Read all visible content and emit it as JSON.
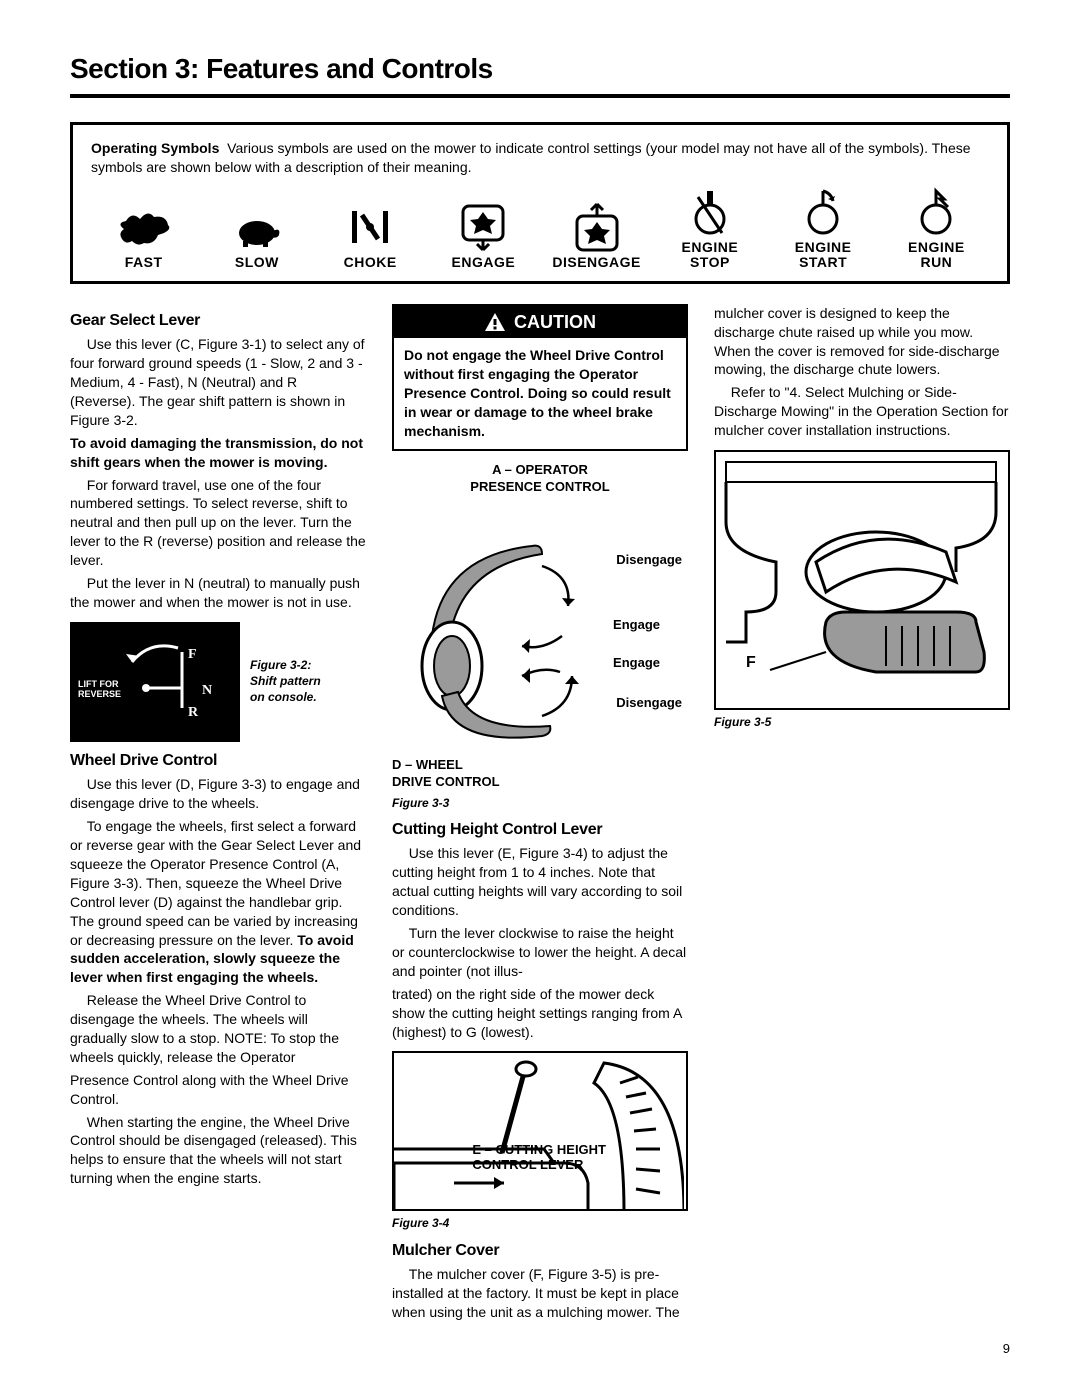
{
  "section_title": "Section 3: Features and Controls",
  "symbols_box": {
    "heading": "Operating Symbols",
    "intro": "Various symbols are used on the mower to indicate control settings (your model may not have all of the symbols). These symbols are shown below with a description of their meaning.",
    "items": [
      {
        "label": "FAST"
      },
      {
        "label": "SLOW"
      },
      {
        "label": "CHOKE"
      },
      {
        "label": "ENGAGE"
      },
      {
        "label": "DISENGAGE"
      },
      {
        "label": "ENGINE STOP"
      },
      {
        "label": "ENGINE START"
      },
      {
        "label": "ENGINE RUN"
      }
    ]
  },
  "gear_select": {
    "heading": "Gear Select Lever",
    "p1": "Use this lever (C, Figure 3-1) to select any of four forward ground speeds (1 - Slow, 2 and 3 - Medium, 4 - Fast), N (Neutral) and R (Reverse). The gear shift pattern is shown in Figure 3-2.",
    "p2_bold": "To avoid damaging the transmission, do not shift gears when the mower is moving.",
    "p3": "For forward travel, use one of the four numbered settings. To select reverse, shift to neutral and then pull up on the lever. Turn the lever to the R (reverse) position and release the lever.",
    "p4": "Put the lever in N (neutral) to manually push the mower and when the mower is not in use."
  },
  "fig32": {
    "lift": "LIFT FOR\nREVERSE",
    "f": "F",
    "n": "N",
    "r": "R",
    "caption": "Figure 3-2:\nShift pattern\non console."
  },
  "wheel_drive": {
    "heading": "Wheel Drive Control",
    "p1": "Use this lever (D, Figure 3-3) to engage and disengage drive to the wheels.",
    "p2": "To engage the wheels, first select a forward or reverse gear with the Gear Select Lever and squeeze the Operator Presence Control (A, Figure 3-3).  Then, squeeze the Wheel Drive Control lever (D) against the handlebar grip.  The ground speed can be varied by increasing or decreasing pressure on the lever.",
    "p2_bold": "To avoid sudden acceleration, slowly squeeze the lever when first engaging the wheels.",
    "p3": "Release the Wheel Drive Control to disengage the wheels. The wheels will gradually slow to a stop.  NOTE: To stop the wheels quickly, release the Operator",
    "p4_cont": "Presence Control along with the Wheel Drive Control.",
    "p5": "When starting the engine, the Wheel Drive Control should be disengaged (released).  This helps to ensure that the wheels will not start turning when the engine starts."
  },
  "caution": {
    "title": "CAUTION",
    "body": "Do not engage the Wheel Drive Control without first engaging the Operator Presence Control.  Doing so could result in wear or damage to the wheel brake mechanism."
  },
  "fig33": {
    "a": "A – OPERATOR\nPRESENCE CONTROL",
    "dis1": "Disengage",
    "eng1": "Engage",
    "eng2": "Engage",
    "dis2": "Disengage",
    "d": "D – WHEEL\nDRIVE CONTROL",
    "caption": "Figure 3-3"
  },
  "cutting_height": {
    "heading": "Cutting Height Control Lever",
    "p1": "Use this lever (E, Figure 3-4) to adjust the cutting height from 1 to 4 inches. Note that actual cutting heights will vary according to soil conditions.",
    "p2": "Turn the lever clockwise to raise the height or counterclockwise to lower the height.  A decal and pointer (not illus-",
    "p3_cont": "trated) on the right side of the mower deck show the cutting height settings ranging from A (highest) to G (lowest)."
  },
  "fig34": {
    "label": "E – CUTTING HEIGHT\nCONTROL LEVER",
    "caption": "Figure 3-4"
  },
  "mulcher": {
    "heading": "Mulcher Cover",
    "p1": "The mulcher cover (F, Figure 3-5) is pre-installed at the factory.  It must be kept in place when using the unit as a mulching mower.  The mulcher cover is designed to keep the discharge chute raised up while you mow.  When the cover is removed for side-discharge mowing, the discharge chute lowers.",
    "p2": "Refer to \"4. Select Mulching or Side-Discharge Mowing\" in the Operation Section for mulcher cover installation instructions."
  },
  "fig35": {
    "f": "F",
    "caption": "Figure 3-5"
  },
  "page_number": "9",
  "colors": {
    "fg": "#000000",
    "bg": "#ffffff",
    "grey": "#9a9a9a"
  }
}
